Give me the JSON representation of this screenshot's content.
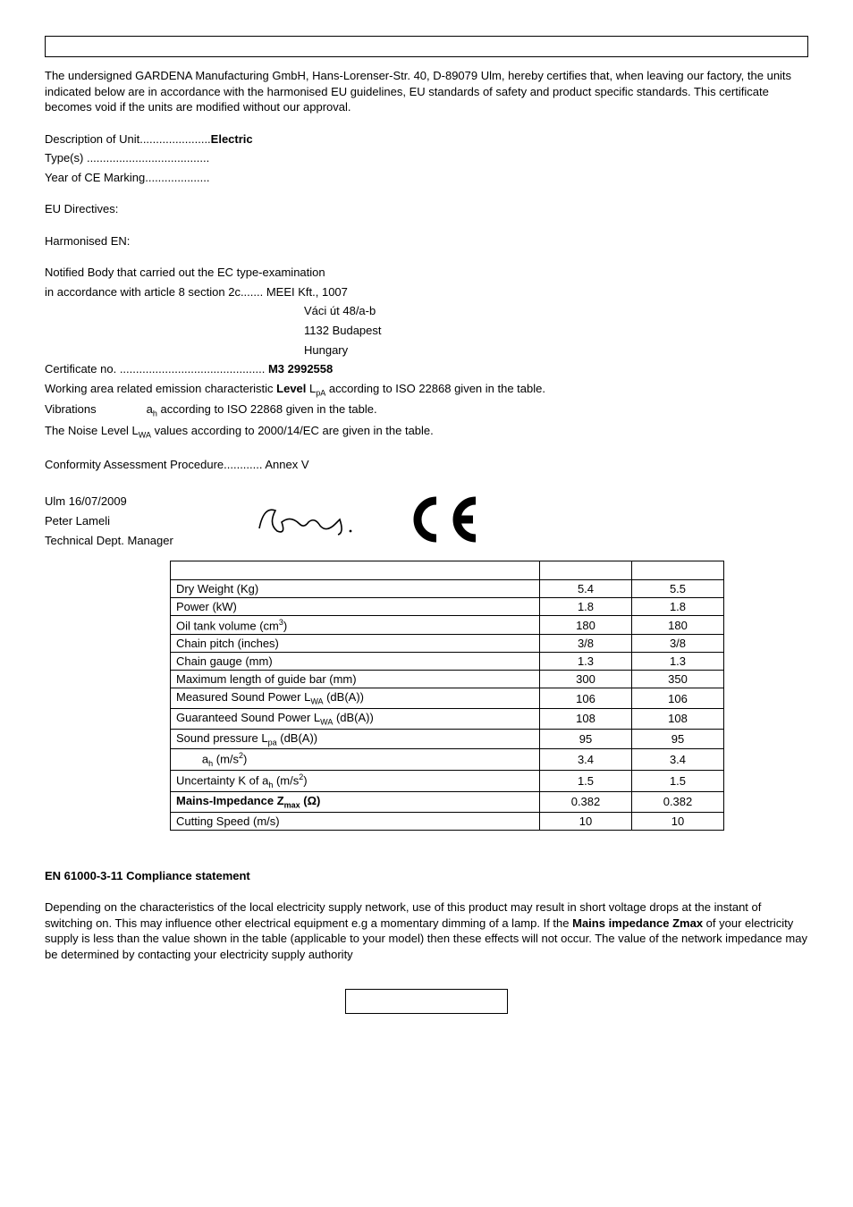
{
  "intro": "The undersigned GARDENA Manufacturing GmbH, Hans-Lorenser-Str. 40, D-89079 Ulm, hereby certifies that, when leaving our factory, the units indicated below are in accordance with the harmonised EU guidelines, EU standards of safety and product specific standards. This certificate becomes void if the units are modified without our approval.",
  "desc_label": "Description of Unit......................",
  "desc_value": "Electric",
  "types_label": "Type(s) ......................................",
  "year_label": "Year of CE Marking....................",
  "eu_dir": "EU Directives:",
  "harm_en": "Harmonised EN:",
  "nb_l1": "Notified Body that carried out the EC type-examination",
  "nb_l2": "in accordance with article 8 section 2c....... MEEI Kft., 1007",
  "nb_addr1": "Váci út 48/a-b",
  "nb_addr2": "1132 Budapest",
  "nb_addr3": "Hungary",
  "cert_label": "Certificate no. ............................................. ",
  "cert_value": "M3 2992558",
  "working_pre": "Working area related emission characteristic ",
  "working_level": "Level",
  "working_post": " LpA according to ISO 22868 given in the table.",
  "vib_label": "Vibrations",
  "vib_text": "ah according to ISO 22868 given in the table.",
  "noise": "The Noise Level LWA values according to 2000/14/EC are given in the table.",
  "conf": "Conformity Assessment Procedure............ Annex V",
  "ulm": "Ulm  16/07/2009",
  "name": "Peter Lameli",
  "role": "Technical Dept. Manager",
  "table": {
    "rows": [
      {
        "label": "Dry Weight (Kg)",
        "c1": "5.4",
        "c2": "5.5"
      },
      {
        "label": "Power (kW)",
        "c1": "1.8",
        "c2": "1.8"
      },
      {
        "label": "Oil tank volume (cm³)",
        "c1": "180",
        "c2": "180"
      },
      {
        "label": "Chain pitch (inches)",
        "c1": "3/8",
        "c2": "3/8"
      },
      {
        "label": "Chain gauge (mm)",
        "c1": "1.3",
        "c2": "1.3"
      },
      {
        "label": "Maximum length of guide bar (mm)",
        "c1": "300",
        "c2": "350"
      },
      {
        "label": "Measured Sound Power LWA  (dB(A))",
        "c1": "106",
        "c2": "106"
      },
      {
        "label": "Guaranteed Sound Power LWA  (dB(A))",
        "c1": "108",
        "c2": "108"
      },
      {
        "label": "Sound pressure             Lpa (dB(A))",
        "c1": "95",
        "c2": "95"
      },
      {
        "label": "ah (m/s²)",
        "c1": "3.4",
        "c2": "3.4",
        "indent": true
      },
      {
        "label": "Uncertainty K of ah (m/s²)",
        "c1": "1.5",
        "c2": "1.5"
      },
      {
        "label": "Mains-Impedance Zmax (Ω)",
        "c1": "0.382",
        "c2": "0.382",
        "bold": true
      },
      {
        "label": "Cutting Speed (m/s)",
        "c1": "10",
        "c2": "10"
      }
    ]
  },
  "compliance_h": "EN 61000-3-11 Compliance statement",
  "compliance_p1": "Depending on the characteristics of the local electricity supply network, use of this product may result in short voltage drops at the instant of switching on.  This may influence other electrical equipment e.g a momentary dimming of a lamp.  If the ",
  "compliance_bold": "Mains impedance Zmax",
  "compliance_p2": " of your electricity supply is less than the value shown in the table (applicable to your model) then these effects will not occur.  The value of the network impedance may be determined by contacting your electricity supply authority"
}
